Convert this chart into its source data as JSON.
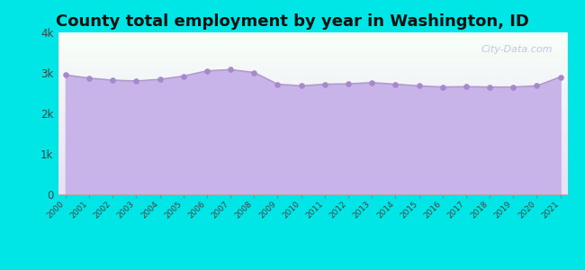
{
  "title": "County total employment by year in Washington, ID",
  "years": [
    2000,
    2001,
    2002,
    2003,
    2004,
    2005,
    2006,
    2007,
    2008,
    2009,
    2010,
    2011,
    2012,
    2013,
    2014,
    2015,
    2016,
    2017,
    2018,
    2019,
    2020,
    2021
  ],
  "values": [
    2950,
    2870,
    2820,
    2800,
    2840,
    2920,
    3050,
    3080,
    3010,
    2720,
    2680,
    2720,
    2730,
    2760,
    2720,
    2680,
    2650,
    2660,
    2650,
    2650,
    2680,
    2900
  ],
  "ylim": [
    0,
    4000
  ],
  "yticks": [
    0,
    1000,
    2000,
    3000,
    4000
  ],
  "ytick_labels": [
    "0",
    "1k",
    "2k",
    "3k",
    "4k"
  ],
  "fill_color": "#c8b4e8",
  "line_color": "#b09ccc",
  "dot_color": "#a888cc",
  "bg_color": "#00e5e5",
  "bg_top_color": "#f8fff8",
  "bg_bottom_color": "#e8e0f5",
  "title_color": "#111111",
  "title_fontsize": 13,
  "watermark": "City-Data.com",
  "xlabel_color": "#444444",
  "ylabel_color": "#444444"
}
